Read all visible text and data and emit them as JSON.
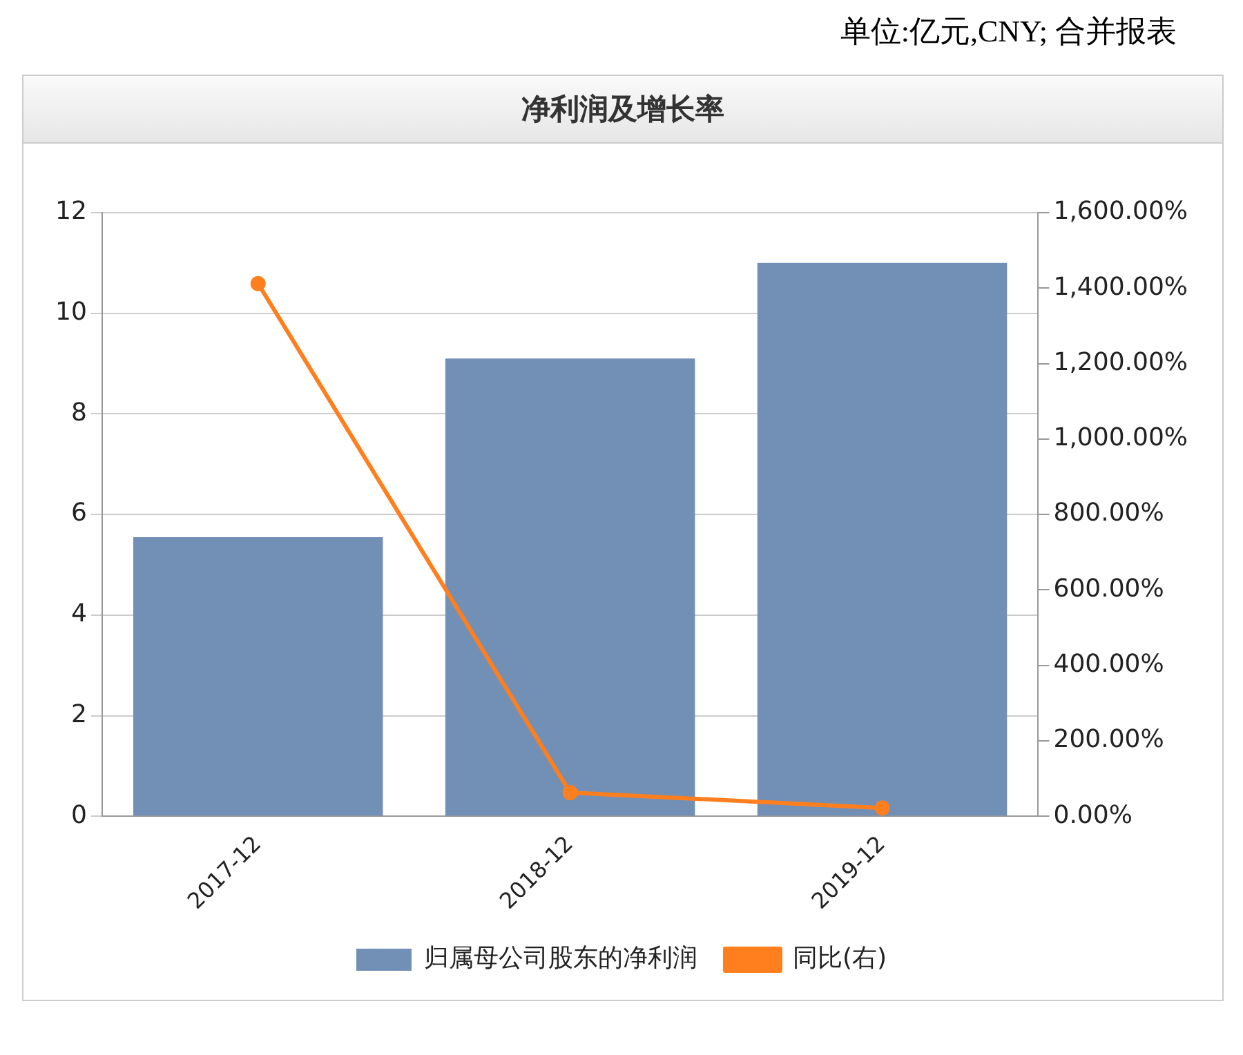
{
  "chart_data": {
    "type": "bar",
    "title": "净利润及增长率",
    "annotations": [
      "单位:亿元,CNY; 合并报表"
    ],
    "categories": [
      "2017-12",
      "2018-12",
      "2019-12"
    ],
    "series": [
      {
        "name": "归属母公司股东的净利润",
        "color": "#7290b6",
        "values": [
          5.55,
          9.1,
          11.0
        ]
      },
      {
        "name": "同比(右)",
        "type": "line",
        "color": "#ff7f1e",
        "axis": "y2",
        "values": [
          1412,
          63,
          22
        ]
      }
    ],
    "ylim": [
      0,
      12
    ],
    "yticks": [
      0,
      2,
      4,
      6,
      8,
      10,
      12
    ],
    "y2lim": [
      0,
      1600
    ],
    "y2ticks": [
      {
        "value": 0,
        "label": "0.00%"
      },
      {
        "value": 200,
        "label": "200.00%"
      },
      {
        "value": 400,
        "label": "400.00%"
      },
      {
        "value": 600,
        "label": "600.00%"
      },
      {
        "value": 800,
        "label": "800.00%"
      },
      {
        "value": 1000,
        "label": "1,000.00%"
      },
      {
        "value": 1200,
        "label": "1,200.00%"
      },
      {
        "value": 1400,
        "label": "1,400.00%"
      },
      {
        "value": 1600,
        "label": "1,600.00%"
      }
    ],
    "grid": "y",
    "legend": "bottom",
    "marker": "circle"
  }
}
